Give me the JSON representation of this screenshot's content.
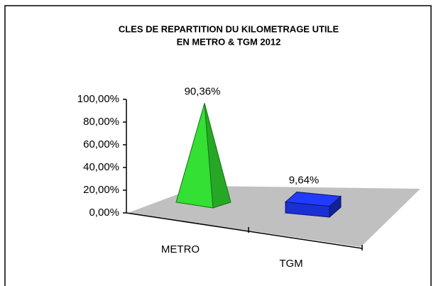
{
  "chart_data": {
    "type": "bar",
    "title": "CLES DE REPARTITION DU KILOMETRAGE UTILE",
    "subtitle": "EN METRO & TGM 2012",
    "categories": [
      "METRO",
      "TGM"
    ],
    "values": [
      90.36,
      9.64
    ],
    "value_labels": [
      "90,36%",
      "9,64%"
    ],
    "colors": [
      "#33e033",
      "#1a2fd6"
    ],
    "shapes": [
      "pyramid",
      "box"
    ],
    "ylim": [
      0,
      100
    ],
    "yticks": [
      {
        "value": 0,
        "label": "0,00%"
      },
      {
        "value": 20,
        "label": "20,00%"
      },
      {
        "value": 40,
        "label": "40,00%"
      },
      {
        "value": 60,
        "label": "60,00%"
      },
      {
        "value": 80,
        "label": "80,00%"
      },
      {
        "value": 100,
        "label": "100,00%"
      }
    ]
  }
}
